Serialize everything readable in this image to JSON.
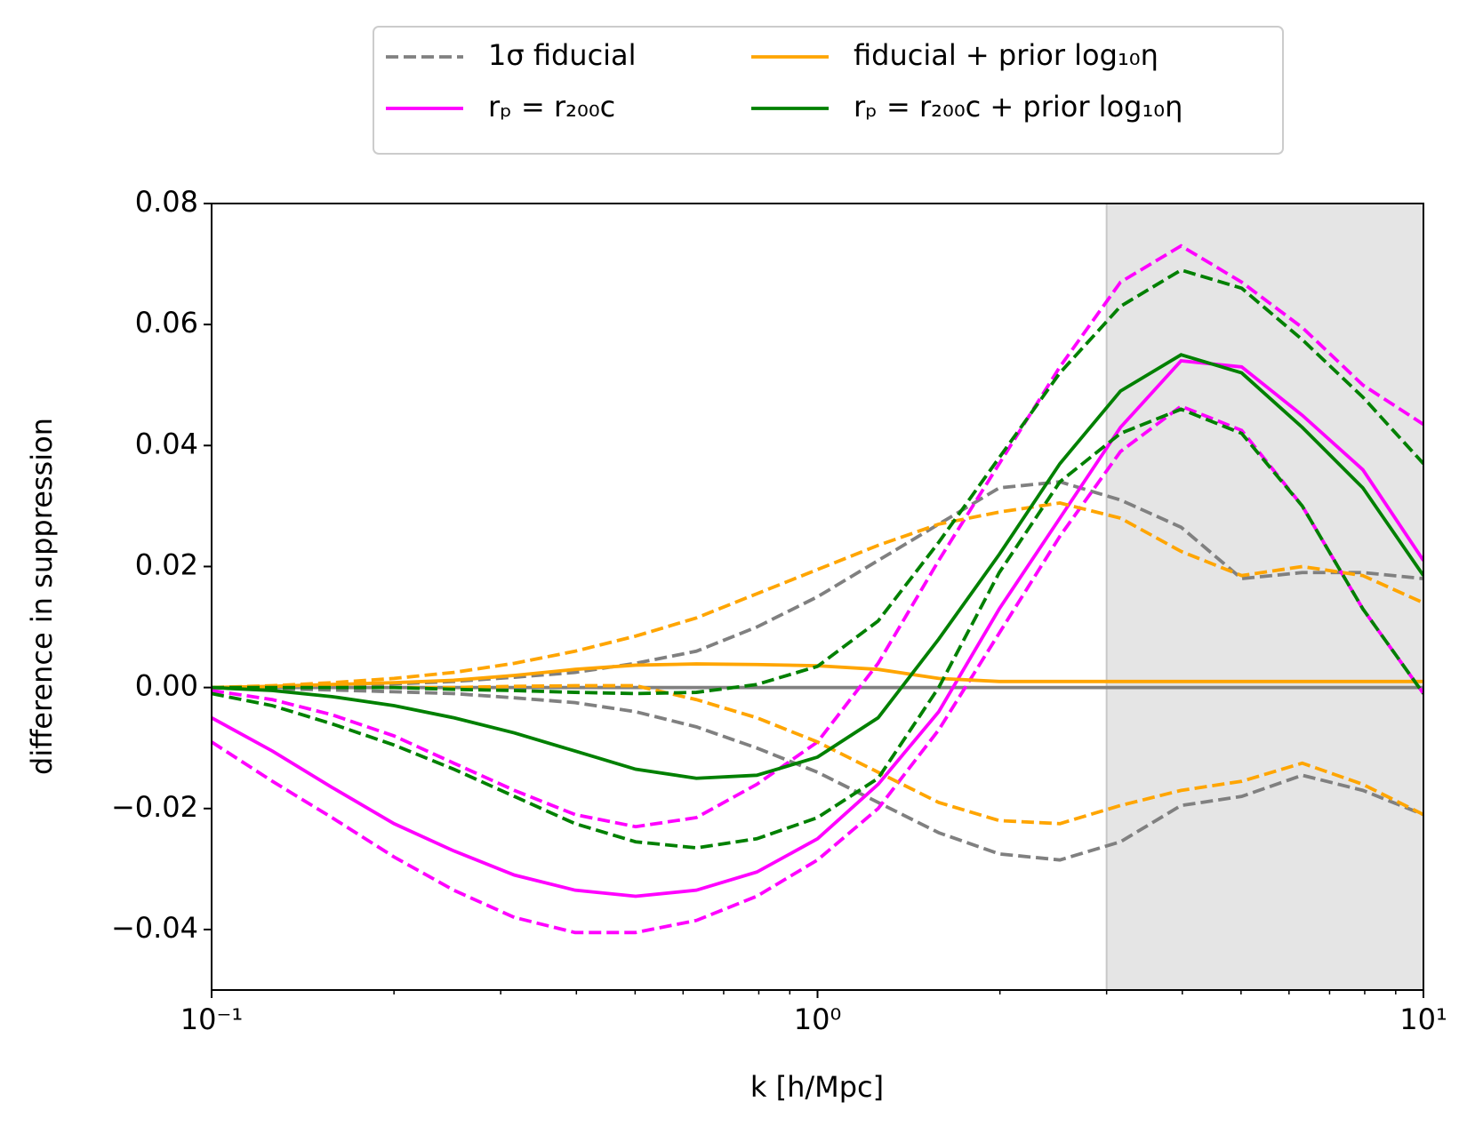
{
  "chart_data": {
    "type": "line",
    "xlabel": "k [h/Mpc]",
    "ylabel": "difference in suppression",
    "xscale": "log",
    "legend": "upper center",
    "shaded_xrange": [
      3,
      10
    ],
    "shade_color": "#e5e5e5",
    "xlim": [
      0.1,
      10
    ],
    "ylim": [
      -0.05,
      0.08
    ],
    "xticks": [
      {
        "value": 0.1,
        "label": "10⁻¹"
      },
      {
        "value": 1,
        "label": "10⁰"
      },
      {
        "value": 10,
        "label": "10¹"
      }
    ],
    "xminorticks": [
      0.2,
      0.3,
      0.4,
      0.5,
      0.6,
      0.7,
      0.8,
      0.9,
      2,
      3,
      4,
      5,
      6,
      7,
      8,
      9
    ],
    "yticks": [
      {
        "value": -0.04,
        "label": "−0.04"
      },
      {
        "value": -0.02,
        "label": "−0.02"
      },
      {
        "value": 0,
        "label": "0.00"
      },
      0.02,
      0.04,
      0.06,
      0.08
    ],
    "x": [
      0.1,
      0.126,
      0.158,
      0.2,
      0.251,
      0.316,
      0.398,
      0.501,
      0.631,
      0.794,
      1,
      1.259,
      1.585,
      1.995,
      2.512,
      3.162,
      3.981,
      5.012,
      6.31,
      7.943,
      10
    ],
    "series": [
      {
        "name": "1σ fiducial",
        "color": "#808080",
        "dashed": true,
        "values": [
          0,
          0,
          0.0003,
          0.0006,
          0.001,
          0.0017,
          0.0025,
          0.004,
          0.006,
          0.01,
          0.015,
          0.021,
          0.027,
          0.033,
          0.034,
          0.031,
          0.0265,
          0.018,
          0.019,
          0.019,
          0.018
        ]
      },
      {
        "color": "#808080",
        "dashed": true,
        "values": [
          0,
          -0.0002,
          -0.0004,
          -0.0007,
          -0.001,
          -0.0017,
          -0.0025,
          -0.004,
          -0.0065,
          -0.01,
          -0.014,
          -0.019,
          -0.024,
          -0.0275,
          -0.0285,
          -0.0255,
          -0.0195,
          -0.018,
          -0.0145,
          -0.017,
          -0.021
        ]
      },
      {
        "color": "#808080",
        "dashed": false,
        "values": [
          0,
          0,
          0,
          0,
          0,
          0,
          0,
          0,
          0,
          0,
          0,
          0,
          0,
          0,
          0,
          0,
          0,
          0,
          0,
          0,
          0
        ]
      },
      {
        "name": "rₚ = r₂₀₀c",
        "color": "#ff00ff",
        "dashed": false,
        "values": [
          -0.005,
          -0.0105,
          -0.0165,
          -0.0225,
          -0.027,
          -0.031,
          -0.0335,
          -0.0345,
          -0.0335,
          -0.0305,
          -0.025,
          -0.016,
          -0.004,
          0.013,
          0.028,
          0.043,
          0.054,
          0.053,
          0.045,
          0.036,
          0.021
        ]
      },
      {
        "color": "#ff00ff",
        "dashed": true,
        "values": [
          -0.009,
          -0.0155,
          -0.0215,
          -0.028,
          -0.0335,
          -0.038,
          -0.0405,
          -0.0405,
          -0.0385,
          -0.0345,
          -0.0285,
          -0.02,
          -0.007,
          0.009,
          0.025,
          0.039,
          0.0465,
          0.0425,
          0.03,
          0.013,
          -0.001
        ]
      },
      {
        "color": "#ff00ff",
        "dashed": true,
        "values": [
          -0.0005,
          -0.002,
          -0.0045,
          -0.008,
          -0.0125,
          -0.017,
          -0.021,
          -0.023,
          -0.0215,
          -0.016,
          -0.009,
          0.004,
          0.021,
          0.037,
          0.053,
          0.067,
          0.073,
          0.067,
          0.0595,
          0.05,
          0.0435
        ]
      },
      {
        "name": "fiducial + prior log₁₀η",
        "color": "#ffa500",
        "dashed": false,
        "values": [
          0,
          0.0002,
          0.0005,
          0.0008,
          0.0012,
          0.002,
          0.003,
          0.0037,
          0.0039,
          0.0038,
          0.0036,
          0.003,
          0.0015,
          0.001,
          0.001,
          0.001,
          0.001,
          0.001,
          0.001,
          0.001,
          0.001
        ]
      },
      {
        "color": "#ffa500",
        "dashed": true,
        "values": [
          0,
          0.0003,
          0.0008,
          0.0015,
          0.0025,
          0.004,
          0.006,
          0.0085,
          0.0115,
          0.0155,
          0.0195,
          0.0235,
          0.027,
          0.029,
          0.0305,
          0.028,
          0.0225,
          0.0185,
          0.02,
          0.0185,
          0.014
        ]
      },
      {
        "color": "#ffa500",
        "dashed": true,
        "values": [
          0,
          0,
          0,
          0,
          0,
          0.0002,
          0.0003,
          0.0003,
          -0.002,
          -0.005,
          -0.009,
          -0.014,
          -0.019,
          -0.022,
          -0.0225,
          -0.0195,
          -0.017,
          -0.0155,
          -0.0125,
          -0.016,
          -0.021
        ]
      },
      {
        "name": "rₚ = r₂₀₀c + prior log₁₀η",
        "color": "#008000",
        "dashed": false,
        "values": [
          0,
          -0.0005,
          -0.0015,
          -0.003,
          -0.005,
          -0.0075,
          -0.0105,
          -0.0135,
          -0.015,
          -0.0145,
          -0.0115,
          -0.005,
          0.008,
          0.022,
          0.037,
          0.049,
          0.055,
          0.052,
          0.043,
          0.033,
          0.0185
        ]
      },
      {
        "color": "#008000",
        "dashed": true,
        "values": [
          0,
          0,
          0,
          0,
          -0.0003,
          -0.0005,
          -0.0008,
          -0.001,
          -0.0008,
          0.0005,
          0.0035,
          0.011,
          0.024,
          0.038,
          0.052,
          0.063,
          0.069,
          0.066,
          0.0575,
          0.048,
          0.037
        ]
      },
      {
        "color": "#008000",
        "dashed": true,
        "values": [
          -0.001,
          -0.003,
          -0.006,
          -0.0095,
          -0.0135,
          -0.018,
          -0.0225,
          -0.0255,
          -0.0265,
          -0.025,
          -0.0215,
          -0.015,
          0,
          0.019,
          0.034,
          0.042,
          0.046,
          0.042,
          0.03,
          0.013,
          -0.001
        ]
      }
    ]
  }
}
